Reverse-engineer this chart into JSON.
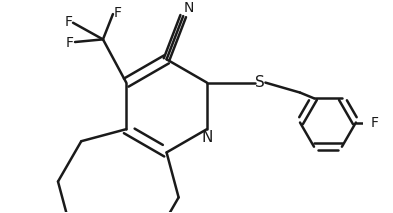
{
  "background_color": "#ffffff",
  "line_color": "#1a1a1a",
  "bond_width": 1.8,
  "font_size": 10,
  "fig_width": 3.93,
  "fig_height": 2.13,
  "dpi": 100,
  "xlim": [
    -2.2,
    2.8
  ],
  "ylim": [
    -1.6,
    1.5
  ]
}
